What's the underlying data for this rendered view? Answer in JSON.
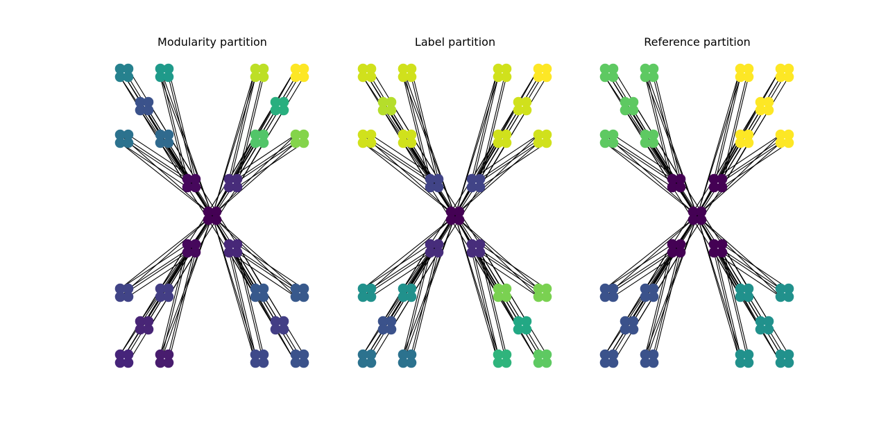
{
  "figure": {
    "panels": [
      {
        "title": "Modularity partition",
        "colors": {
          "center": "#440154",
          "tl": {
            "hub": "#46085c",
            "a": "#26818e",
            "b": "#1f9a8a",
            "c": "#3b528b",
            "d": "#2c728e",
            "e": "#306a8e"
          },
          "tr": {
            "hub": "#472c7a",
            "a": "#bddf26",
            "b": "#fde725",
            "c": "#29af7f",
            "d": "#52c569",
            "e": "#84d44b"
          },
          "bl": {
            "hub": "#46085c",
            "a": "#414487",
            "b": "#433e85",
            "c": "#482576",
            "d": "#46247a",
            "e": "#481c6e"
          },
          "br": {
            "hub": "#472878",
            "a": "#38598c",
            "b": "#38598c",
            "c": "#433e85",
            "d": "#3e4989",
            "e": "#3b528b"
          }
        }
      },
      {
        "title": "Label partition",
        "colors": {
          "center": "#440154",
          "tl": {
            "hub": "#414487",
            "a": "#d0e11c",
            "b": "#d0e11c",
            "c": "#b5de2b",
            "d": "#d0e11c",
            "e": "#d0e11c"
          },
          "tr": {
            "hub": "#414487",
            "a": "#d0e11c",
            "b": "#fde725",
            "c": "#d0e11c",
            "d": "#d0e11c",
            "e": "#d0e11c"
          },
          "bl": {
            "hub": "#472d7b",
            "a": "#21918c",
            "b": "#21918c",
            "c": "#3b528b",
            "d": "#2c728e",
            "e": "#2c728e"
          },
          "br": {
            "hub": "#472d7b",
            "a": "#7ad151",
            "b": "#7ad151",
            "c": "#22a884",
            "d": "#2fb47c",
            "e": "#5ec962"
          }
        }
      },
      {
        "title": "Reference partition",
        "colors": {
          "center": "#440154",
          "tl": {
            "hub": "#440154",
            "a": "#5ec962",
            "b": "#5ec962",
            "c": "#5ec962",
            "d": "#5ec962",
            "e": "#5ec962"
          },
          "tr": {
            "hub": "#440154",
            "a": "#fde725",
            "b": "#fde725",
            "c": "#fde725",
            "d": "#fde725",
            "e": "#fde725"
          },
          "bl": {
            "hub": "#440154",
            "a": "#3b528b",
            "b": "#3b528b",
            "c": "#3b528b",
            "d": "#3b528b",
            "e": "#3b528b"
          },
          "br": {
            "hub": "#440154",
            "a": "#21918c",
            "b": "#21918c",
            "c": "#21918c",
            "d": "#21918c",
            "e": "#21918c"
          }
        }
      }
    ]
  }
}
